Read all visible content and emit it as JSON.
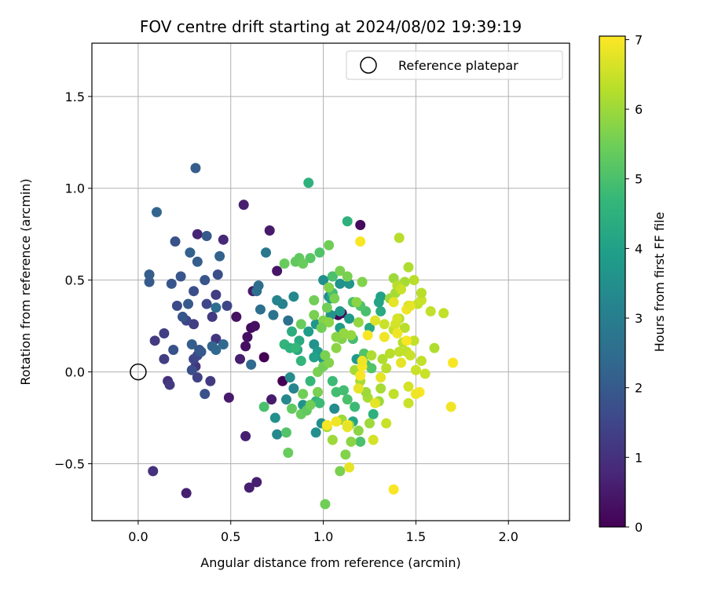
{
  "chart_data": {
    "type": "scatter",
    "title": "FOV centre drift starting at 2024/08/02 19:39:19",
    "xlabel": "Angular distance from reference (arcmin)",
    "ylabel": "Rotation from reference (arcmin)",
    "xlim": [
      -0.25,
      2.33
    ],
    "ylim": [
      -0.81,
      1.79
    ],
    "xticks": [
      "0.0",
      "0.5",
      "1.0",
      "1.5",
      "2.0"
    ],
    "xtick_values": [
      0,
      0.5,
      1.0,
      1.5,
      2.0
    ],
    "yticks": [
      "−0.5",
      "0.0",
      "0.5",
      "1.0",
      "1.5"
    ],
    "ytick_values": [
      -0.5,
      0,
      0.5,
      1.0,
      1.5
    ],
    "grid": true,
    "legend": {
      "label": "Reference platepar",
      "placement": "top-right",
      "marker": "hollow-circle"
    },
    "reference_point": {
      "x": 0.0,
      "y": 0.0
    },
    "colorbar": {
      "label": "Hours from first FF file",
      "colormap": "viridis",
      "range": [
        0,
        7.05
      ],
      "ticks": [
        "0",
        "1",
        "2",
        "3",
        "4",
        "5",
        "6",
        "7"
      ],
      "tick_values": [
        0,
        1,
        2,
        3,
        4,
        5,
        6,
        7
      ]
    },
    "colormap_stops": [
      "#440154",
      "#482878",
      "#3e4989",
      "#31688e",
      "#26828e",
      "#1f9e89",
      "#35b779",
      "#6ece58",
      "#b5de2b",
      "#fde725"
    ],
    "points": [
      [
        0.57,
        0.91,
        0.6
      ],
      [
        0.71,
        0.77,
        0.5
      ],
      [
        0.46,
        0.72,
        0.8
      ],
      [
        0.32,
        0.75,
        0.7
      ],
      [
        0.75,
        0.55,
        0.4
      ],
      [
        0.53,
        0.3,
        0.3
      ],
      [
        0.62,
        0.44,
        0.5
      ],
      [
        0.61,
        0.24,
        0.2
      ],
      [
        0.63,
        0.25,
        0.3
      ],
      [
        0.59,
        0.19,
        0.3
      ],
      [
        0.58,
        0.14,
        0.3
      ],
      [
        0.68,
        0.08,
        0.0
      ],
      [
        0.55,
        0.07,
        0.6
      ],
      [
        0.49,
        -0.14,
        0.5
      ],
      [
        0.58,
        -0.35,
        0.6
      ],
      [
        0.6,
        -0.63,
        0.6
      ],
      [
        0.64,
        -0.6,
        0.6
      ],
      [
        0.26,
        -0.66,
        0.6
      ],
      [
        0.08,
        -0.54,
        1.0
      ],
      [
        0.72,
        -0.15,
        0.5
      ],
      [
        0.78,
        -0.05,
        0.0
      ],
      [
        1.08,
        0.31,
        0.0
      ],
      [
        1.1,
        0.32,
        0.2
      ],
      [
        1.2,
        0.8,
        0.2
      ],
      [
        0.16,
        -0.05,
        1.0
      ],
      [
        0.17,
        -0.07,
        1.2
      ],
      [
        0.14,
        0.07,
        1.3
      ],
      [
        0.14,
        0.21,
        1.3
      ],
      [
        0.09,
        0.17,
        1.2
      ],
      [
        0.31,
        0.03,
        1.1
      ],
      [
        0.32,
        -0.03,
        1.4
      ],
      [
        0.39,
        -0.05,
        1.2
      ],
      [
        0.3,
        0.26,
        1.3
      ],
      [
        0.26,
        0.28,
        1.5
      ],
      [
        0.3,
        0.07,
        1.5
      ],
      [
        0.32,
        0.09,
        1.6
      ],
      [
        0.42,
        0.18,
        1.1
      ],
      [
        0.42,
        0.42,
        1.3
      ],
      [
        0.37,
        0.37,
        1.5
      ],
      [
        0.48,
        0.36,
        1.5
      ],
      [
        0.4,
        0.3,
        1.2
      ],
      [
        0.36,
        -0.12,
        1.8
      ],
      [
        0.29,
        0.01,
        1.7
      ],
      [
        0.33,
        0.12,
        1.9
      ],
      [
        0.34,
        0.11,
        2.0
      ],
      [
        0.19,
        0.12,
        1.8
      ],
      [
        0.21,
        0.36,
        1.6
      ],
      [
        0.24,
        0.3,
        1.9
      ],
      [
        0.32,
        0.6,
        2.1
      ],
      [
        0.23,
        0.52,
        1.9
      ],
      [
        0.3,
        0.44,
        1.7
      ],
      [
        0.36,
        0.5,
        1.9
      ],
      [
        0.37,
        0.74,
        2.0
      ],
      [
        0.43,
        0.53,
        1.7
      ],
      [
        0.27,
        0.37,
        2.0
      ],
      [
        0.2,
        0.71,
        1.8
      ],
      [
        0.28,
        0.65,
        2.2
      ],
      [
        0.44,
        0.63,
        2.2
      ],
      [
        0.06,
        0.49,
        2.0
      ],
      [
        0.06,
        0.53,
        2.1
      ],
      [
        0.1,
        0.87,
        2.3
      ],
      [
        0.31,
        1.11,
        2.1
      ],
      [
        0.18,
        0.48,
        1.9
      ],
      [
        0.29,
        0.15,
        2.1
      ],
      [
        0.42,
        0.12,
        2.4
      ],
      [
        0.46,
        0.15,
        2.4
      ],
      [
        0.42,
        0.35,
        2.5
      ],
      [
        0.4,
        0.14,
        2.3
      ],
      [
        0.61,
        0.04,
        2.4
      ],
      [
        0.65,
        0.47,
        2.5
      ],
      [
        0.64,
        0.44,
        2.6
      ],
      [
        0.66,
        0.34,
        2.6
      ],
      [
        0.73,
        0.31,
        2.7
      ],
      [
        0.81,
        0.28,
        2.6
      ],
      [
        0.69,
        0.65,
        2.8
      ],
      [
        0.78,
        0.37,
        3.1
      ],
      [
        0.75,
        0.39,
        3.2
      ],
      [
        0.84,
        0.41,
        3.3
      ],
      [
        0.84,
        -0.09,
        3.2
      ],
      [
        0.82,
        -0.03,
        3.4
      ],
      [
        0.74,
        -0.25,
        3.5
      ],
      [
        0.75,
        -0.34,
        3.3
      ],
      [
        0.8,
        -0.15,
        3.3
      ],
      [
        0.89,
        -0.18,
        3.6
      ],
      [
        0.96,
        -0.33,
        3.5
      ],
      [
        0.99,
        -0.28,
        3.5
      ],
      [
        1.06,
        -0.2,
        3.4
      ],
      [
        1.03,
        0.41,
        3.3
      ],
      [
        1.0,
        0.5,
        3.5
      ],
      [
        1.05,
        0.52,
        3.4
      ],
      [
        1.09,
        0.48,
        3.6
      ],
      [
        1.14,
        0.48,
        3.7
      ],
      [
        1.09,
        0.33,
        3.8
      ],
      [
        1.04,
        0.31,
        3.6
      ],
      [
        0.95,
        0.15,
        3.6
      ],
      [
        0.97,
        0.11,
        3.8
      ],
      [
        1.0,
        0.07,
        3.7
      ],
      [
        1.09,
        0.24,
        3.9
      ],
      [
        1.14,
        0.29,
        3.8
      ],
      [
        1.18,
        0.07,
        3.8
      ],
      [
        1.22,
        0.09,
        4.2
      ],
      [
        1.16,
        -0.27,
        4.1
      ],
      [
        1.27,
        -0.23,
        4.5
      ],
      [
        1.31,
        0.41,
        4.0
      ],
      [
        1.3,
        0.38,
        4.1
      ],
      [
        1.25,
        0.24,
        4.2
      ],
      [
        1.31,
        0.33,
        4.3
      ],
      [
        1.04,
        0.4,
        3.9
      ],
      [
        0.96,
        0.26,
        3.7
      ],
      [
        0.92,
        0.22,
        3.9
      ],
      [
        0.95,
        0.08,
        4.0
      ],
      [
        0.86,
        0.12,
        4.2
      ],
      [
        0.87,
        0.17,
        4.3
      ],
      [
        0.92,
        1.03,
        4.5
      ],
      [
        1.13,
        0.82,
        4.5
      ],
      [
        0.83,
        0.22,
        4.4
      ],
      [
        0.79,
        0.15,
        4.6
      ],
      [
        0.82,
        0.13,
        4.5
      ],
      [
        0.85,
        0.13,
        4.7
      ],
      [
        0.88,
        0.06,
        4.6
      ],
      [
        0.93,
        -0.05,
        4.7
      ],
      [
        0.96,
        -0.16,
        4.6
      ],
      [
        0.98,
        -0.17,
        4.8
      ],
      [
        1.05,
        -0.05,
        4.8
      ],
      [
        1.07,
        -0.11,
        4.9
      ],
      [
        1.11,
        -0.1,
        4.9
      ],
      [
        1.13,
        -0.15,
        5.0
      ],
      [
        1.17,
        -0.19,
        4.8
      ],
      [
        1.2,
        -0.38,
        5.0
      ],
      [
        1.16,
        0.18,
        4.9
      ],
      [
        1.23,
        0.04,
        5.0
      ],
      [
        1.22,
        0.1,
        5.1
      ],
      [
        1.26,
        0.02,
        5.1
      ],
      [
        1.23,
        0.33,
        5.0
      ],
      [
        1.2,
        0.36,
        5.1
      ],
      [
        1.16,
        0.38,
        5.0
      ],
      [
        1.05,
        0.43,
        4.9
      ],
      [
        1.05,
        0.52,
        5.0
      ],
      [
        0.98,
        0.65,
        5.1
      ],
      [
        0.93,
        0.62,
        5.2
      ],
      [
        0.87,
        0.62,
        5.3
      ],
      [
        0.85,
        0.6,
        5.3
      ],
      [
        0.89,
        0.59,
        5.4
      ],
      [
        0.79,
        0.59,
        5.4
      ],
      [
        0.68,
        -0.19,
        5.0
      ],
      [
        0.8,
        -0.33,
        5.1
      ],
      [
        0.83,
        -0.2,
        5.3
      ],
      [
        0.88,
        -0.23,
        5.4
      ],
      [
        0.91,
        -0.21,
        5.3
      ],
      [
        0.93,
        -0.18,
        5.5
      ],
      [
        0.89,
        -0.12,
        5.5
      ],
      [
        0.97,
        -0.11,
        5.6
      ],
      [
        0.97,
        0.0,
        5.6
      ],
      [
        1.0,
        0.03,
        5.5
      ],
      [
        1.03,
        0.05,
        5.7
      ],
      [
        1.01,
        0.09,
        5.6
      ],
      [
        1.07,
        0.13,
        5.8
      ],
      [
        1.1,
        0.18,
        5.7
      ],
      [
        1.11,
        0.21,
        5.9
      ],
      [
        1.15,
        0.2,
        5.9
      ],
      [
        1.02,
        0.35,
        5.5
      ],
      [
        1.06,
        0.4,
        5.6
      ],
      [
        1.03,
        0.46,
        5.7
      ],
      [
        0.95,
        0.39,
        5.5
      ],
      [
        0.95,
        0.31,
        5.6
      ],
      [
        1.0,
        0.28,
        5.7
      ],
      [
        1.03,
        0.27,
        5.8
      ],
      [
        1.07,
        0.19,
        5.8
      ],
      [
        1.19,
        0.27,
        5.9
      ],
      [
        1.18,
        0.38,
        5.8
      ],
      [
        1.21,
        0.49,
        5.7
      ],
      [
        1.13,
        0.52,
        5.6
      ],
      [
        1.09,
        0.55,
        5.6
      ],
      [
        0.99,
        0.24,
        5.5
      ],
      [
        0.88,
        0.26,
        5.4
      ],
      [
        1.03,
        0.69,
        5.5
      ],
      [
        0.81,
        -0.44,
        5.4
      ],
      [
        1.01,
        -0.72,
        5.5
      ],
      [
        1.09,
        -0.54,
        5.6
      ],
      [
        1.12,
        -0.45,
        5.7
      ],
      [
        1.15,
        -0.38,
        5.8
      ],
      [
        1.19,
        -0.32,
        5.8
      ],
      [
        1.14,
        -0.29,
        5.9
      ],
      [
        1.05,
        -0.37,
        6.0
      ],
      [
        1.02,
        -0.3,
        6.1
      ],
      [
        1.1,
        -0.26,
        6.0
      ],
      [
        1.25,
        -0.28,
        6.0
      ],
      [
        1.24,
        -0.14,
        6.1
      ],
      [
        1.3,
        -0.16,
        6.0
      ],
      [
        1.31,
        -0.09,
        6.1
      ],
      [
        1.23,
        -0.11,
        6.0
      ],
      [
        1.2,
        -0.05,
        6.1
      ],
      [
        1.17,
        0.01,
        6.1
      ],
      [
        1.26,
        0.09,
        6.2
      ],
      [
        1.32,
        0.07,
        6.2
      ],
      [
        1.34,
        0.02,
        6.3
      ],
      [
        1.36,
        0.1,
        6.3
      ],
      [
        1.41,
        0.11,
        6.4
      ],
      [
        1.45,
        0.11,
        6.4
      ],
      [
        1.43,
        0.16,
        6.3
      ],
      [
        1.47,
        0.09,
        6.5
      ],
      [
        1.5,
        0.01,
        6.5
      ],
      [
        1.53,
        0.06,
        6.4
      ],
      [
        1.49,
        0.17,
        6.4
      ],
      [
        1.44,
        0.24,
        6.3
      ],
      [
        1.41,
        0.29,
        6.2
      ],
      [
        1.38,
        0.23,
        6.4
      ],
      [
        1.33,
        0.26,
        6.5
      ],
      [
        1.39,
        0.26,
        6.6
      ],
      [
        1.4,
        0.29,
        6.6
      ],
      [
        1.46,
        0.36,
        6.5
      ],
      [
        1.51,
        0.37,
        6.4
      ],
      [
        1.53,
        0.39,
        6.5
      ],
      [
        1.58,
        0.33,
        6.4
      ],
      [
        1.53,
        0.43,
        6.3
      ],
      [
        1.49,
        0.5,
        6.3
      ],
      [
        1.46,
        0.57,
        6.2
      ],
      [
        1.41,
        0.73,
        6.3
      ],
      [
        1.44,
        0.49,
        6.1
      ],
      [
        1.38,
        0.51,
        6.0
      ],
      [
        1.36,
        0.4,
        6.0
      ],
      [
        1.39,
        0.43,
        6.1
      ],
      [
        1.4,
        0.47,
        6.3
      ],
      [
        1.42,
        0.45,
        6.5
      ],
      [
        1.6,
        0.13,
        6.2
      ],
      [
        1.65,
        0.32,
        6.4
      ],
      [
        1.55,
        -0.01,
        6.5
      ],
      [
        1.46,
        -0.08,
        6.6
      ],
      [
        1.46,
        -0.17,
        6.5
      ],
      [
        1.38,
        -0.12,
        6.4
      ],
      [
        1.34,
        -0.28,
        6.5
      ],
      [
        1.27,
        -0.37,
        6.6
      ],
      [
        1.28,
        0.28,
        6.7
      ],
      [
        1.38,
        0.38,
        6.8
      ],
      [
        1.45,
        0.34,
        6.9
      ],
      [
        1.47,
        0.36,
        6.8
      ],
      [
        1.4,
        0.21,
        6.9
      ],
      [
        1.45,
        0.17,
        7.0
      ],
      [
        1.24,
        0.2,
        7.0
      ],
      [
        1.21,
        0.03,
        7.0
      ],
      [
        1.21,
        0.06,
        6.9
      ],
      [
        1.2,
        -0.02,
        7.0
      ],
      [
        1.19,
        -0.09,
        6.8
      ],
      [
        1.02,
        -0.29,
        7.0
      ],
      [
        1.13,
        -0.29,
        7.0
      ],
      [
        1.13,
        -0.3,
        6.8
      ],
      [
        1.07,
        -0.27,
        6.9
      ],
      [
        1.14,
        -0.52,
        6.8
      ],
      [
        1.28,
        -0.17,
        6.8
      ],
      [
        1.31,
        -0.03,
        6.8
      ],
      [
        1.38,
        -0.64,
        7.0
      ],
      [
        1.52,
        -0.11,
        7.0
      ],
      [
        1.5,
        -0.12,
        6.9
      ],
      [
        1.69,
        -0.19,
        6.9
      ],
      [
        1.7,
        0.05,
        7.0
      ],
      [
        1.2,
        0.71,
        7.0
      ],
      [
        1.42,
        0.05,
        6.8
      ],
      [
        1.33,
        0.19,
        6.9
      ]
    ]
  }
}
